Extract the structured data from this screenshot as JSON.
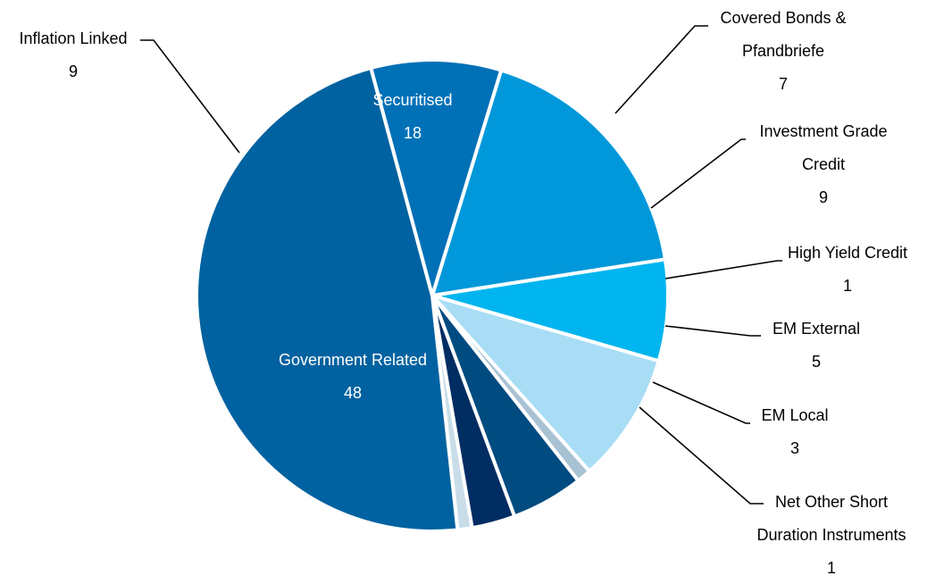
{
  "chart_data": {
    "type": "pie",
    "title": "",
    "slices": [
      {
        "name": "Securitised",
        "value": 18,
        "color": "#0098DA"
      },
      {
        "name": "Covered Bonds & Pfandbriefe",
        "value": 7,
        "color": "#00B5EF"
      },
      {
        "name": "Investment Grade Credit",
        "value": 9,
        "color": "#A8DDF5"
      },
      {
        "name": "High Yield Credit",
        "value": 1,
        "color": "#A9C2D3"
      },
      {
        "name": "EM External",
        "value": 5,
        "color": "#004B80"
      },
      {
        "name": "EM Local",
        "value": 3,
        "color": "#002D62"
      },
      {
        "name": "Net Other Short Duration Instruments",
        "value": 1,
        "color": "#C9DDE9"
      },
      {
        "name": "Government Related",
        "value": 48,
        "color": "#0062A0"
      },
      {
        "name": "Inflation Linked",
        "value": 9,
        "color": "#0070B7"
      }
    ],
    "labels": [
      {
        "lines": [
          "Securitised"
        ],
        "value": "18",
        "placement": "inside"
      },
      {
        "lines": [
          "Covered Bonds &",
          "Pfandbriefe"
        ],
        "value": "7",
        "placement": "outside"
      },
      {
        "lines": [
          "Investment Grade",
          "Credit"
        ],
        "value": "9",
        "placement": "outside"
      },
      {
        "lines": [
          "High Yield Credit"
        ],
        "value": "1",
        "placement": "outside"
      },
      {
        "lines": [
          "EM External"
        ],
        "value": "5",
        "placement": "outside"
      },
      {
        "lines": [
          "EM Local"
        ],
        "value": "3",
        "placement": "outside"
      },
      {
        "lines": [
          "Net Other Short",
          "Duration Instruments"
        ],
        "value": "1",
        "placement": "outside"
      },
      {
        "lines": [
          "Government Related"
        ],
        "value": "48",
        "placement": "inside"
      },
      {
        "lines": [
          "Inflation Linked"
        ],
        "value": "9",
        "placement": "outside"
      }
    ],
    "legend": "none"
  }
}
